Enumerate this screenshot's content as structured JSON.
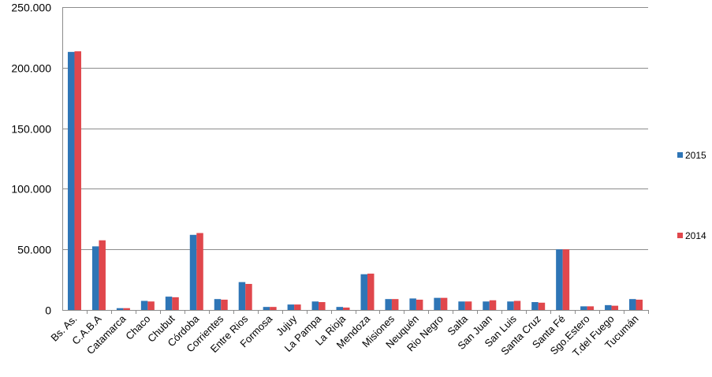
{
  "chart_data": {
    "type": "bar",
    "categories": [
      "Bs. As.",
      "C.A.B.A",
      "Catamarca",
      "Chaco",
      "Chubut",
      "Córdoba",
      "Corrientes",
      "Entre Rios",
      "Formosa",
      "Jujuy",
      "La Pampa",
      "La Rioja",
      "Mendoza",
      "Misiones",
      "Neuquén",
      "Rio Negro",
      "Salta",
      "San Juan",
      "San Luis",
      "Santa Cruz",
      "Santa Fé",
      "Sgo.Estero",
      "T.del Fuego",
      "Tucumán"
    ],
    "series": [
      {
        "name": "2015",
        "color": "#2E75B6",
        "values": [
          213000,
          52500,
          1500,
          7500,
          11000,
          62000,
          9000,
          23000,
          2500,
          4500,
          7000,
          2500,
          29500,
          9000,
          9500,
          10000,
          7000,
          7000,
          7000,
          6500,
          50000,
          3000,
          4000,
          9000
        ]
      },
      {
        "name": "2014",
        "color": "#E0474C",
        "values": [
          213500,
          57500,
          1500,
          7000,
          10500,
          63500,
          8500,
          21500,
          2500,
          4500,
          6500,
          2000,
          30000,
          9000,
          8500,
          10000,
          7000,
          8000,
          7500,
          6000,
          50000,
          3000,
          3500,
          8500
        ]
      }
    ],
    "ylim": [
      0,
      250000
    ],
    "yticks": [
      "0",
      "50.000",
      "100.000",
      "150.000",
      "200.000",
      "250.000"
    ],
    "ytick_values": [
      0,
      50000,
      100000,
      150000,
      200000,
      250000
    ],
    "grid": true,
    "legend_position": "right",
    "title": "",
    "xlabel": "",
    "ylabel": ""
  }
}
